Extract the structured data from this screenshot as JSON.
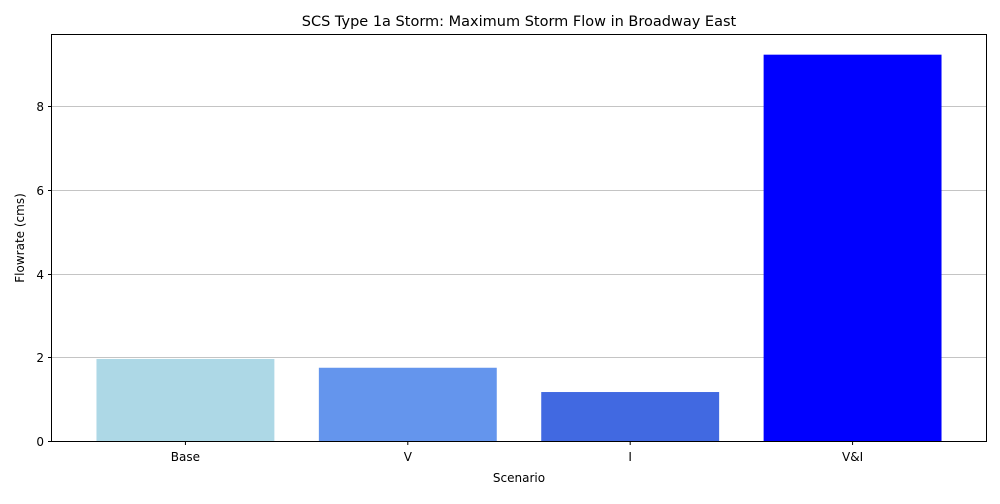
{
  "chart_data": {
    "type": "bar",
    "title": "SCS Type 1a Storm: Maximum Storm Flow in Broadway East",
    "xlabel": "Scenario",
    "ylabel": "Flowrate (cms)",
    "categories": [
      "Base",
      "V",
      "I",
      "V&I"
    ],
    "values": [
      1.96,
      1.75,
      1.17,
      9.23
    ],
    "colors": [
      "#add8e6",
      "#6495ed",
      "#4169e1",
      "#0000ff"
    ],
    "ylim": [
      0,
      9.7
    ],
    "yticks": [
      0,
      2,
      4,
      6,
      8
    ],
    "grid": "y-major",
    "legend": "none"
  }
}
